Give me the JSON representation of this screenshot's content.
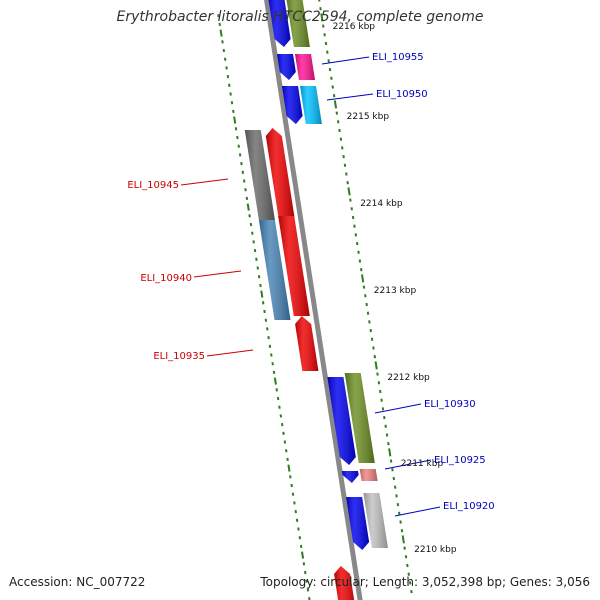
{
  "title": "Erythrobacter litoralis HTCC2594, complete genome",
  "footer": {
    "accession": "Accession: NC_007722",
    "topology": "Topology: circular; Length: 3,052,398 bp; Genes: 3,056"
  },
  "colors": {
    "backbone": "#888888",
    "tick": "#2e7d1f",
    "gene_label_forward": "#0000bb",
    "gene_label_reverse": "#cc0000",
    "kbp_label": "#111111"
  },
  "scale": {
    "unit": "kbp",
    "major_ticks": [
      {
        "kbp": 2216,
        "label": "2216 kbp"
      },
      {
        "kbp": 2215,
        "label": "2215 kbp"
      },
      {
        "kbp": 2214,
        "label": "2214 kbp"
      },
      {
        "kbp": 2213,
        "label": "2213 kbp"
      },
      {
        "kbp": 2212,
        "label": "2212 kbp"
      },
      {
        "kbp": 2211,
        "label": "2211 kbp"
      },
      {
        "kbp": 2210,
        "label": "2210 kbp"
      }
    ]
  },
  "gene_labels": [
    {
      "text": "ELI_10955",
      "strand": "forward"
    },
    {
      "text": "ELI_10950",
      "strand": "forward"
    },
    {
      "text": "ELI_10945",
      "strand": "reverse"
    },
    {
      "text": "ELI_10940",
      "strand": "reverse"
    },
    {
      "text": "ELI_10935",
      "strand": "reverse"
    },
    {
      "text": "ELI_10930",
      "strand": "forward"
    },
    {
      "text": "ELI_10925",
      "strand": "forward"
    },
    {
      "text": "ELI_10920",
      "strand": "forward"
    }
  ],
  "features": [
    {
      "id": "f-top-blue-a",
      "color": "#0000ee",
      "kind": "cds"
    },
    {
      "id": "f-top-olive-a",
      "color": "#6b8e23",
      "kind": "gene"
    },
    {
      "id": "f-10955-blue",
      "color": "#0000ee",
      "kind": "cds"
    },
    {
      "id": "f-10955-pink",
      "color": "#ff1493",
      "kind": "gene"
    },
    {
      "id": "f-10950-blue",
      "color": "#0000ee",
      "kind": "cds"
    },
    {
      "id": "f-10950-cyan",
      "color": "#00bfff",
      "kind": "gene"
    },
    {
      "id": "f-10945-gray",
      "color": "#696969",
      "kind": "gene"
    },
    {
      "id": "f-10945-red",
      "color": "#ee0000",
      "kind": "cds"
    },
    {
      "id": "f-10940-steel",
      "color": "#4682b4",
      "kind": "gene"
    },
    {
      "id": "f-10940-red",
      "color": "#ee0000",
      "kind": "cds"
    },
    {
      "id": "f-10935-red",
      "color": "#ee0000",
      "kind": "cds"
    },
    {
      "id": "f-10930-blue",
      "color": "#0000ee",
      "kind": "cds"
    },
    {
      "id": "f-10930-olive",
      "color": "#6b8e23",
      "kind": "gene"
    },
    {
      "id": "f-10925-blue",
      "color": "#0000ee",
      "kind": "cds"
    },
    {
      "id": "f-10925-rose",
      "color": "#f08080",
      "kind": "gene"
    },
    {
      "id": "f-10920-blue",
      "color": "#0000ee",
      "kind": "cds"
    },
    {
      "id": "f-10920-silver",
      "color": "#c0c0c0",
      "kind": "gene"
    },
    {
      "id": "f-bottom-red",
      "color": "#ee0000",
      "kind": "cds"
    }
  ]
}
